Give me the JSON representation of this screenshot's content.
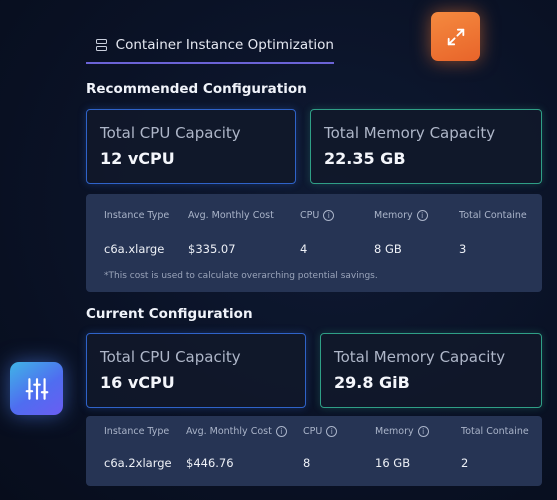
{
  "header": {
    "tab_label": "Container Instance Optimization",
    "tab_icon": "server-stack-icon"
  },
  "buttons": {
    "expand_icon": "expand-arrows-icon",
    "expand_color": "#ed7230",
    "settings_icon": "sliders-icon",
    "settings_color": "#4f6df0"
  },
  "recommended": {
    "title": "Recommended Configuration",
    "cpu_card": {
      "label": "Total CPU Capacity",
      "value": "12 vCPU"
    },
    "memory_card": {
      "label": "Total Memory Capacity",
      "value": "22.35 GB"
    },
    "table": {
      "headers": [
        "Instance Type",
        "Avg. Monthly Cost",
        "CPU",
        "Memory",
        "Total Containe"
      ],
      "row": [
        "c6a.xlarge",
        "$335.07",
        "4",
        "8 GB",
        "3"
      ],
      "note": "*This cost is used to calculate overarching potential savings."
    }
  },
  "current": {
    "title": "Current Configuration",
    "cpu_card": {
      "label": "Total CPU Capacity",
      "value": "16 vCPU"
    },
    "memory_card": {
      "label": "Total Memory Capacity",
      "value": "29.8 GiB"
    },
    "table": {
      "headers": [
        "Instance Type",
        "Avg. Monthly Cost",
        "CPU",
        "Memory",
        "Total Containe"
      ],
      "row": [
        "c6a.2xlarge",
        "$446.76",
        "8",
        "16 GB",
        "2"
      ]
    }
  },
  "info_glyph": "i",
  "colors": {
    "cpu_border": "#2f63c9",
    "memory_border": "#2f9f86",
    "tab_underline": "#6b63d6"
  }
}
